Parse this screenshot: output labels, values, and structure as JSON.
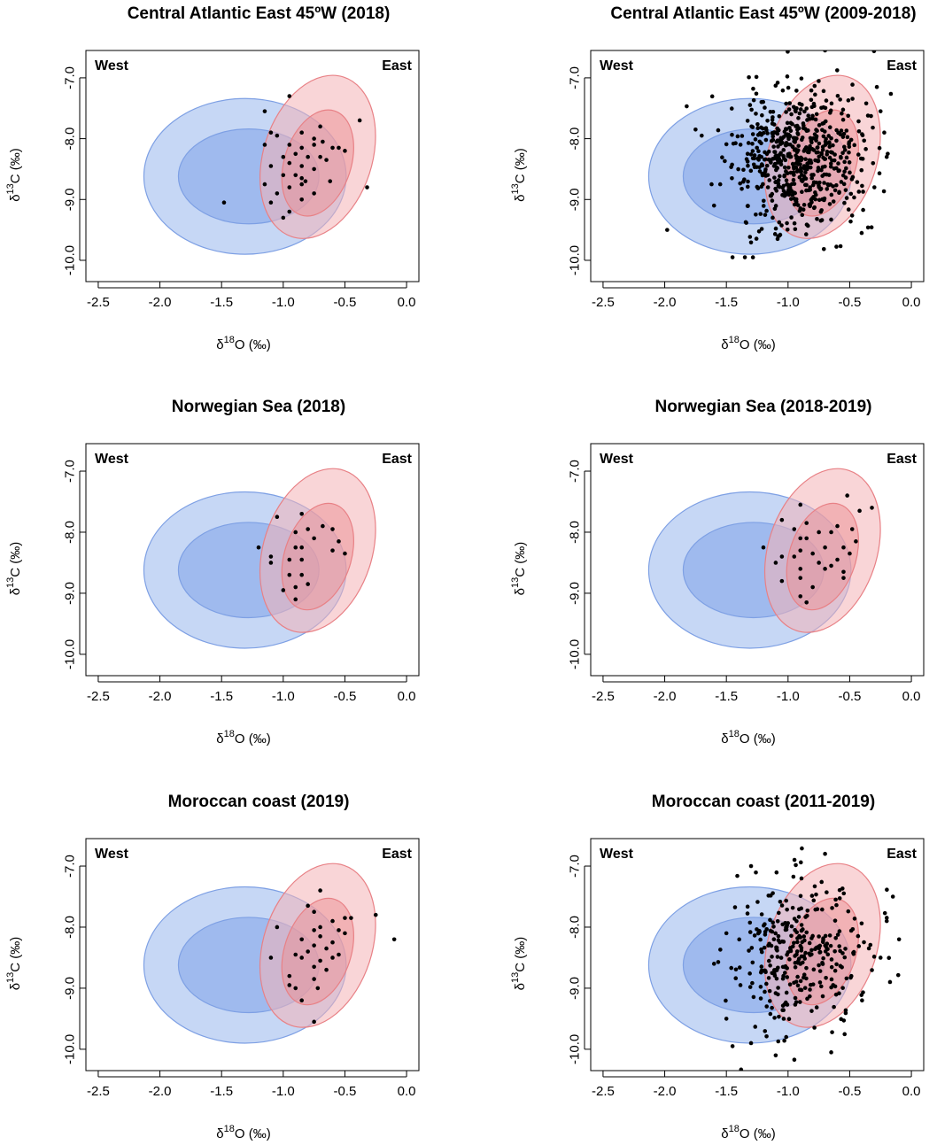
{
  "colors": {
    "west_fill": "#a7c1f0",
    "west_inner_fill": "#86a6ea",
    "west_stroke": "#7ea0e4",
    "east_fill": "#f4b3b6",
    "east_inner_fill": "#ec8f93",
    "east_stroke": "#e88186",
    "point": "#000000"
  },
  "chart_data": [
    {
      "type": "scatter",
      "title": "Central Atlantic East 45ºW (2018)",
      "xlabel": "δ18O (‰)",
      "ylabel": "δ13C (‰)",
      "xlim": [
        -2.6,
        0.1
      ],
      "ylim": [
        -10.35,
        -6.55
      ],
      "xticks": [
        -2.5,
        -2.0,
        -1.5,
        -1.0,
        -0.5,
        0.0
      ],
      "yticks": [
        -7.0,
        -8.0,
        -9.0,
        -10.0
      ],
      "corner_labels": {
        "left": "West",
        "right": "East"
      },
      "points": [
        [
          -1.15,
          -7.55
        ],
        [
          -0.95,
          -7.3
        ],
        [
          -0.38,
          -7.7
        ],
        [
          -1.1,
          -7.9
        ],
        [
          -1.05,
          -7.95
        ],
        [
          -0.85,
          -7.9
        ],
        [
          -0.75,
          -8.0
        ],
        [
          -0.7,
          -7.8
        ],
        [
          -1.15,
          -8.1
        ],
        [
          -0.95,
          -8.1
        ],
        [
          -0.85,
          -8.15
        ],
        [
          -0.75,
          -8.1
        ],
        [
          -0.68,
          -8.05
        ],
        [
          -0.6,
          -8.15
        ],
        [
          -0.55,
          -8.15
        ],
        [
          -0.5,
          -8.2
        ],
        [
          -1.0,
          -8.3
        ],
        [
          -0.9,
          -8.25
        ],
        [
          -0.8,
          -8.3
        ],
        [
          -0.7,
          -8.3
        ],
        [
          -0.65,
          -8.35
        ],
        [
          -1.1,
          -8.45
        ],
        [
          -0.95,
          -8.4
        ],
        [
          -0.85,
          -8.45
        ],
        [
          -0.75,
          -8.5
        ],
        [
          -1.0,
          -8.6
        ],
        [
          -0.9,
          -8.6
        ],
        [
          -0.85,
          -8.65
        ],
        [
          -0.82,
          -8.7
        ],
        [
          -0.62,
          -8.7
        ],
        [
          -1.15,
          -8.75
        ],
        [
          -0.95,
          -8.8
        ],
        [
          -0.85,
          -8.75
        ],
        [
          -1.05,
          -8.9
        ],
        [
          -0.75,
          -8.9
        ],
        [
          -1.48,
          -9.05
        ],
        [
          -1.1,
          -9.05
        ],
        [
          -0.85,
          -9.0
        ],
        [
          -0.95,
          -9.2
        ],
        [
          -1.0,
          -9.3
        ],
        [
          -0.32,
          -8.8
        ]
      ]
    },
    {
      "type": "scatter",
      "title": "Central Atlantic East 45ºW (2009-2018)",
      "xlabel": "δ18O (‰)",
      "ylabel": "δ13C (‰)",
      "xlim": [
        -2.6,
        0.1
      ],
      "ylim": [
        -10.35,
        -6.55
      ],
      "xticks": [
        -2.5,
        -2.0,
        -1.5,
        -1.0,
        -0.5,
        0.0
      ],
      "yticks": [
        -7.0,
        -8.0,
        -9.0,
        -10.0
      ],
      "corner_labels": {
        "left": "West",
        "right": "East"
      },
      "dense_cloud": {
        "count": 620,
        "seed": 11,
        "center": [
          -0.92,
          -8.3
        ],
        "sd": [
          0.26,
          0.58
        ]
      },
      "points": [
        [
          -1.98,
          -9.5
        ],
        [
          -1.75,
          -7.85
        ],
        [
          -1.7,
          -7.95
        ],
        [
          -1.62,
          -8.75
        ],
        [
          -1.6,
          -9.1
        ],
        [
          -1.55,
          -8.75
        ],
        [
          -1.45,
          -9.95
        ],
        [
          -1.35,
          -9.95
        ],
        [
          -0.28,
          -7.15
        ],
        [
          -0.25,
          -7.55
        ],
        [
          -0.22,
          -7.9
        ],
        [
          -0.2,
          -8.3
        ],
        [
          -0.3,
          -8.8
        ],
        [
          -0.7,
          -6.55
        ]
      ]
    },
    {
      "type": "scatter",
      "title": "Norwegian Sea (2018)",
      "xlabel": "δ18O (‰)",
      "ylabel": "δ13C (‰)",
      "xlim": [
        -2.6,
        0.1
      ],
      "ylim": [
        -10.35,
        -6.55
      ],
      "xticks": [
        -2.5,
        -2.0,
        -1.5,
        -1.0,
        -0.5,
        0.0
      ],
      "yticks": [
        -7.0,
        -8.0,
        -9.0,
        -10.0
      ],
      "corner_labels": {
        "left": "West",
        "right": "East"
      },
      "points": [
        [
          -1.05,
          -7.75
        ],
        [
          -0.85,
          -7.7
        ],
        [
          -0.9,
          -8.0
        ],
        [
          -0.8,
          -7.95
        ],
        [
          -0.68,
          -7.9
        ],
        [
          -0.6,
          -7.95
        ],
        [
          -0.75,
          -8.1
        ],
        [
          -0.55,
          -8.15
        ],
        [
          -1.2,
          -8.25
        ],
        [
          -0.9,
          -8.25
        ],
        [
          -0.85,
          -8.25
        ],
        [
          -0.6,
          -8.3
        ],
        [
          -1.1,
          -8.4
        ],
        [
          -1.1,
          -8.5
        ],
        [
          -0.95,
          -8.45
        ],
        [
          -0.85,
          -8.45
        ],
        [
          -0.5,
          -8.35
        ],
        [
          -0.95,
          -8.7
        ],
        [
          -0.85,
          -8.7
        ],
        [
          -0.9,
          -8.9
        ],
        [
          -0.8,
          -8.85
        ],
        [
          -1.0,
          -8.95
        ],
        [
          -0.9,
          -9.1
        ]
      ]
    },
    {
      "type": "scatter",
      "title": "Norwegian Sea (2018-2019)",
      "xlabel": "δ18O (‰)",
      "ylabel": "δ13C (‰)",
      "xlim": [
        -2.6,
        0.1
      ],
      "ylim": [
        -10.35,
        -6.55
      ],
      "xticks": [
        -2.5,
        -2.0,
        -1.5,
        -1.0,
        -0.5,
        0.0
      ],
      "yticks": [
        -7.0,
        -8.0,
        -9.0,
        -10.0
      ],
      "corner_labels": {
        "left": "West",
        "right": "East"
      },
      "points": [
        [
          -0.52,
          -7.4
        ],
        [
          -0.42,
          -7.65
        ],
        [
          -0.32,
          -7.6
        ],
        [
          -0.9,
          -7.55
        ],
        [
          -1.05,
          -7.8
        ],
        [
          -0.85,
          -7.85
        ],
        [
          -0.95,
          -7.95
        ],
        [
          -0.6,
          -7.9
        ],
        [
          -0.48,
          -7.95
        ],
        [
          -0.9,
          -8.1
        ],
        [
          -0.85,
          -8.1
        ],
        [
          -0.75,
          -8.0
        ],
        [
          -0.65,
          -8.0
        ],
        [
          -0.45,
          -8.15
        ],
        [
          -1.2,
          -8.25
        ],
        [
          -0.9,
          -8.3
        ],
        [
          -0.7,
          -8.25
        ],
        [
          -0.55,
          -8.25
        ],
        [
          -0.5,
          -8.35
        ],
        [
          -1.05,
          -8.4
        ],
        [
          -0.95,
          -8.4
        ],
        [
          -0.8,
          -8.35
        ],
        [
          -0.6,
          -8.45
        ],
        [
          -0.75,
          -8.5
        ],
        [
          -1.1,
          -8.5
        ],
        [
          -0.9,
          -8.6
        ],
        [
          -0.7,
          -8.6
        ],
        [
          -0.65,
          -8.55
        ],
        [
          -0.55,
          -8.65
        ],
        [
          -0.55,
          -8.75
        ],
        [
          -1.05,
          -8.8
        ],
        [
          -0.9,
          -8.75
        ],
        [
          -0.8,
          -8.9
        ],
        [
          -0.9,
          -9.05
        ],
        [
          -0.85,
          -9.15
        ]
      ]
    },
    {
      "type": "scatter",
      "title": "Moroccan coast (2019)",
      "xlabel": "δ18O (‰)",
      "ylabel": "δ13C (‰)",
      "xlim": [
        -2.6,
        0.1
      ],
      "ylim": [
        -10.35,
        -6.55
      ],
      "xticks": [
        -2.5,
        -2.0,
        -1.5,
        -1.0,
        -0.5,
        0.0
      ],
      "yticks": [
        -7.0,
        -8.0,
        -9.0,
        -10.0
      ],
      "corner_labels": {
        "left": "West",
        "right": "East"
      },
      "points": [
        [
          -0.7,
          -7.4
        ],
        [
          -0.8,
          -7.65
        ],
        [
          -0.75,
          -7.75
        ],
        [
          -0.25,
          -7.8
        ],
        [
          -0.5,
          -7.85
        ],
        [
          -0.6,
          -7.9
        ],
        [
          -0.45,
          -7.85
        ],
        [
          -1.05,
          -8.0
        ],
        [
          -0.7,
          -8.0
        ],
        [
          -0.75,
          -8.05
        ],
        [
          -0.55,
          -8.05
        ],
        [
          -0.5,
          -8.1
        ],
        [
          -0.7,
          -8.15
        ],
        [
          -0.85,
          -8.2
        ],
        [
          -0.6,
          -8.25
        ],
        [
          -0.1,
          -8.2
        ],
        [
          -0.75,
          -8.3
        ],
        [
          -0.65,
          -8.35
        ],
        [
          -0.8,
          -8.4
        ],
        [
          -0.9,
          -8.45
        ],
        [
          -1.1,
          -8.5
        ],
        [
          -0.85,
          -8.5
        ],
        [
          -0.7,
          -8.55
        ],
        [
          -0.6,
          -8.5
        ],
        [
          -0.55,
          -8.45
        ],
        [
          -0.75,
          -8.65
        ],
        [
          -0.65,
          -8.7
        ],
        [
          -0.95,
          -8.8
        ],
        [
          -0.75,
          -8.85
        ],
        [
          -0.9,
          -9.0
        ],
        [
          -0.85,
          -9.2
        ],
        [
          -0.95,
          -8.95
        ],
        [
          -0.75,
          -9.55
        ],
        [
          -0.72,
          -9.0
        ]
      ]
    },
    {
      "type": "scatter",
      "title": "Moroccan coast  (2011-2019)",
      "xlabel": "δ18O (‰)",
      "ylabel": "δ13C (‰)",
      "xlim": [
        -2.6,
        0.1
      ],
      "ylim": [
        -10.35,
        -6.55
      ],
      "xticks": [
        -2.5,
        -2.0,
        -1.5,
        -1.0,
        -0.5,
        0.0
      ],
      "yticks": [
        -7.0,
        -8.0,
        -9.0,
        -10.0
      ],
      "corner_labels": {
        "left": "West",
        "right": "East"
      },
      "dense_cloud": {
        "count": 330,
        "seed": 29,
        "center": [
          -0.9,
          -8.4
        ],
        "sd": [
          0.27,
          0.58
        ]
      },
      "points": [
        [
          -1.6,
          -8.6
        ],
        [
          -1.5,
          -8.1
        ],
        [
          -1.5,
          -9.5
        ],
        [
          -1.45,
          -9.95
        ],
        [
          -1.3,
          -9.9
        ],
        [
          -1.1,
          -10.1
        ],
        [
          -0.65,
          -10.05
        ],
        [
          -1.3,
          -7.0
        ],
        [
          -0.7,
          -6.8
        ],
        [
          -0.15,
          -7.5
        ],
        [
          -0.2,
          -7.9
        ],
        [
          -0.1,
          -8.2
        ],
        [
          -0.25,
          -8.5
        ],
        [
          -0.4,
          -9.2
        ]
      ]
    }
  ]
}
